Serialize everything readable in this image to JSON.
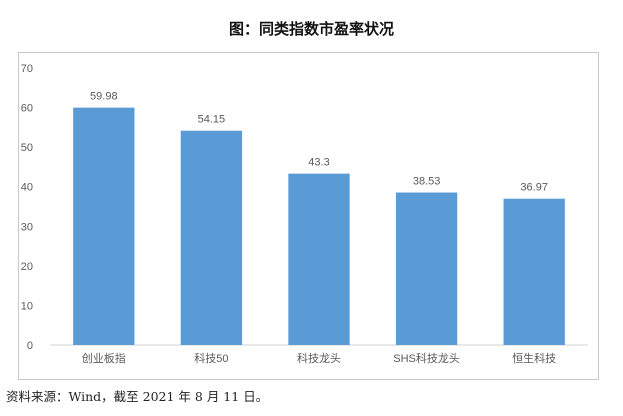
{
  "title": "图：同类指数市盈率状况",
  "source": "资料来源：Wind，截至 2021 年 8 月 11 日。",
  "chart_data": {
    "type": "bar",
    "categories": [
      "创业板指",
      "科技50",
      "科技龙头",
      "SHS科技龙头",
      "恒生科技"
    ],
    "values": [
      59.98,
      54.15,
      43.3,
      38.53,
      36.97
    ],
    "data_labels": [
      "59.98",
      "54.15",
      "43.3",
      "38.53",
      "36.97"
    ],
    "ylim": [
      0,
      70
    ],
    "yticks": [
      0,
      10,
      20,
      30,
      40,
      50,
      60,
      70
    ],
    "xlabel": "",
    "ylabel": "",
    "grid": false,
    "bar_color": "#5b9bd5"
  }
}
